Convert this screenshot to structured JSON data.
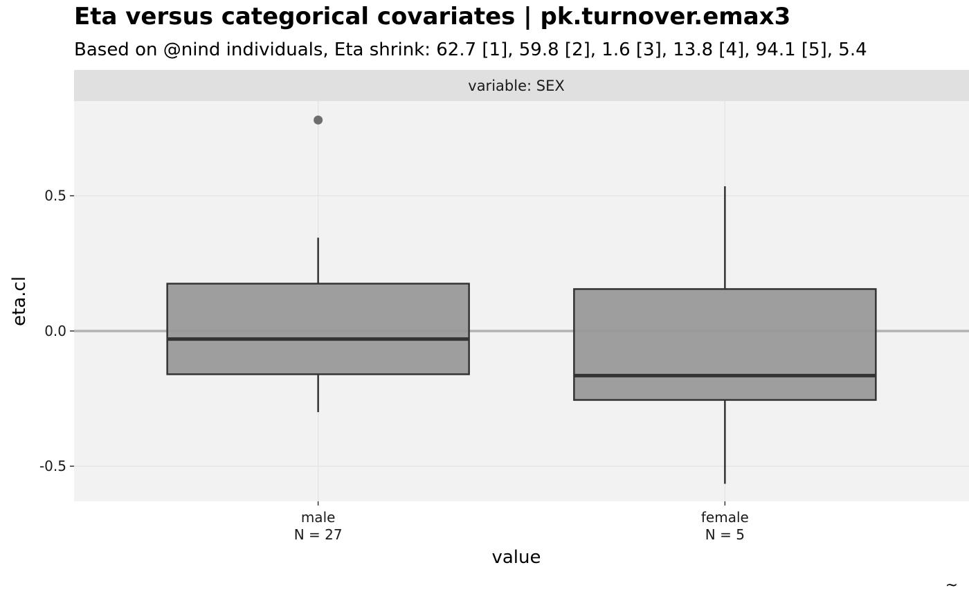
{
  "chart_data": {
    "type": "box",
    "title": "Eta versus categorical covariates | pk.turnover.emax3",
    "subtitle": "Based on @nind individuals, Eta shrink: 62.7 [1], 59.8 [2], 1.6 [3], 13.8 [4], 94.1 [5], 5.4",
    "facet_label": "variable: SEX",
    "xlabel": "value",
    "ylabel": "eta.cl",
    "caption": "~",
    "ylim": [
      -0.63,
      0.85
    ],
    "yticks": [
      -0.5,
      0.0,
      0.5
    ],
    "ytick_labels": [
      "-0.5",
      "0.0",
      "0.5"
    ],
    "reference_line": 0,
    "grid": true,
    "categories": [
      "male",
      "female"
    ],
    "category_counts": [
      "N = 27",
      "N = 5"
    ],
    "boxes": [
      {
        "category": "male",
        "whisker_low": -0.3,
        "q1": -0.16,
        "median": -0.03,
        "q3": 0.175,
        "whisker_high": 0.345,
        "outliers": [
          0.78
        ]
      },
      {
        "category": "female",
        "whisker_low": -0.565,
        "q1": -0.255,
        "median": -0.165,
        "q3": 0.155,
        "whisker_high": 0.535,
        "outliers": []
      }
    ],
    "colors": {
      "box_fill": "#999999",
      "box_stroke": "#333333",
      "panel_bg": "#f2f2f2",
      "strip_bg": "#e0e0e0",
      "grid": "#e3e3e3",
      "ref_line": "#b3b3b3",
      "outlier": "#6e6e6e"
    }
  }
}
